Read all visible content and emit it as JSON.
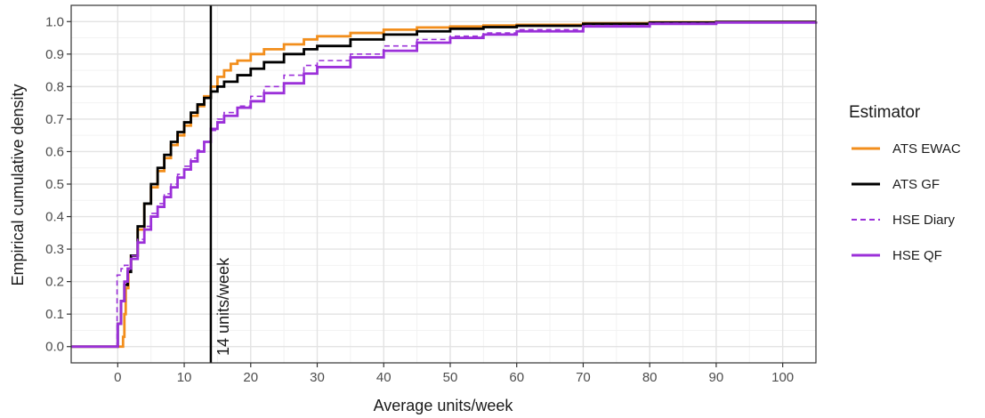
{
  "chart_data": {
    "type": "line",
    "subtype": "empirical-cdf (step)",
    "title": "",
    "xlabel": "Average units/week",
    "ylabel": "Empirical cumulative density",
    "xlim": [
      -7,
      105
    ],
    "ylim": [
      -0.05,
      1.05
    ],
    "x_ticks": [
      0,
      10,
      20,
      30,
      40,
      50,
      60,
      70,
      80,
      90,
      100
    ],
    "y_ticks": [
      0.0,
      0.1,
      0.2,
      0.3,
      0.4,
      0.5,
      0.6,
      0.7,
      0.8,
      0.9,
      1.0
    ],
    "x_tick_labels": [
      "0",
      "10",
      "20",
      "30",
      "40",
      "50",
      "60",
      "70",
      "80",
      "90",
      "100"
    ],
    "y_tick_labels": [
      "0.0",
      "0.1",
      "0.2",
      "0.3",
      "0.4",
      "0.5",
      "0.6",
      "0.7",
      "0.8",
      "0.9",
      "1.0"
    ],
    "grid": true,
    "legend": {
      "title": "Estimator",
      "position": "right"
    },
    "reference_line": {
      "x": 14,
      "label": "14 units/week"
    },
    "series": [
      {
        "name": "ATS EWAC",
        "color": "#f28e1c",
        "dash": "solid",
        "points": [
          [
            -7,
            0
          ],
          [
            0.8,
            0
          ],
          [
            0.8,
            0.03
          ],
          [
            1.0,
            0.1
          ],
          [
            1.2,
            0.18
          ],
          [
            1.6,
            0.24
          ],
          [
            2,
            0.28
          ],
          [
            3,
            0.36
          ],
          [
            4,
            0.44
          ],
          [
            5,
            0.49
          ],
          [
            6,
            0.54
          ],
          [
            7,
            0.58
          ],
          [
            8,
            0.62
          ],
          [
            9,
            0.65
          ],
          [
            10,
            0.68
          ],
          [
            11,
            0.71
          ],
          [
            12,
            0.74
          ],
          [
            13,
            0.77
          ],
          [
            14,
            0.8
          ],
          [
            15,
            0.83
          ],
          [
            16,
            0.85
          ],
          [
            17,
            0.87
          ],
          [
            18,
            0.88
          ],
          [
            20,
            0.9
          ],
          [
            22,
            0.915
          ],
          [
            25,
            0.93
          ],
          [
            28,
            0.945
          ],
          [
            30,
            0.955
          ],
          [
            35,
            0.965
          ],
          [
            40,
            0.975
          ],
          [
            45,
            0.982
          ],
          [
            50,
            0.985
          ],
          [
            55,
            0.988
          ],
          [
            60,
            0.99
          ],
          [
            70,
            0.995
          ],
          [
            80,
            0.998
          ],
          [
            90,
            0.999
          ],
          [
            105,
            1.0
          ]
        ]
      },
      {
        "name": "ATS GF",
        "color": "#000000",
        "dash": "solid",
        "points": [
          [
            -7,
            0
          ],
          [
            -0.2,
            0
          ],
          [
            0,
            0.07
          ],
          [
            0.5,
            0.14
          ],
          [
            1,
            0.19
          ],
          [
            1.5,
            0.23
          ],
          [
            2,
            0.28
          ],
          [
            3,
            0.37
          ],
          [
            4,
            0.44
          ],
          [
            5,
            0.5
          ],
          [
            6,
            0.55
          ],
          [
            7,
            0.59
          ],
          [
            8,
            0.63
          ],
          [
            9,
            0.66
          ],
          [
            10,
            0.69
          ],
          [
            11,
            0.72
          ],
          [
            12,
            0.745
          ],
          [
            13,
            0.765
          ],
          [
            14,
            0.785
          ],
          [
            15,
            0.8
          ],
          [
            16,
            0.815
          ],
          [
            18,
            0.835
          ],
          [
            20,
            0.855
          ],
          [
            22,
            0.875
          ],
          [
            25,
            0.9
          ],
          [
            28,
            0.915
          ],
          [
            30,
            0.925
          ],
          [
            35,
            0.945
          ],
          [
            40,
            0.96
          ],
          [
            45,
            0.97
          ],
          [
            50,
            0.978
          ],
          [
            55,
            0.983
          ],
          [
            60,
            0.987
          ],
          [
            70,
            0.993
          ],
          [
            80,
            0.997
          ],
          [
            90,
            0.999
          ],
          [
            105,
            1.0
          ]
        ]
      },
      {
        "name": "HSE Diary",
        "color": "#9b30d9",
        "dash": "dashed",
        "points": [
          [
            -7,
            0
          ],
          [
            -0.2,
            0
          ],
          [
            -0.1,
            0.22
          ],
          [
            0.5,
            0.24
          ],
          [
            1,
            0.25
          ],
          [
            2,
            0.28
          ],
          [
            3,
            0.33
          ],
          [
            4,
            0.37
          ],
          [
            5,
            0.41
          ],
          [
            6,
            0.44
          ],
          [
            7,
            0.47
          ],
          [
            8,
            0.5
          ],
          [
            9,
            0.53
          ],
          [
            10,
            0.555
          ],
          [
            11,
            0.58
          ],
          [
            12,
            0.605
          ],
          [
            13,
            0.63
          ],
          [
            14,
            0.665
          ],
          [
            15,
            0.7
          ],
          [
            16,
            0.72
          ],
          [
            18,
            0.74
          ],
          [
            20,
            0.77
          ],
          [
            22,
            0.8
          ],
          [
            25,
            0.835
          ],
          [
            28,
            0.865
          ],
          [
            30,
            0.88
          ],
          [
            35,
            0.9
          ],
          [
            40,
            0.925
          ],
          [
            45,
            0.945
          ],
          [
            50,
            0.955
          ],
          [
            55,
            0.965
          ],
          [
            60,
            0.975
          ],
          [
            70,
            0.988
          ],
          [
            80,
            0.995
          ],
          [
            90,
            0.998
          ],
          [
            105,
            1.0
          ]
        ]
      },
      {
        "name": "HSE QF",
        "color": "#9b30d9",
        "dash": "solid",
        "points": [
          [
            -7,
            0
          ],
          [
            -0.2,
            0
          ],
          [
            0,
            0.07
          ],
          [
            0.5,
            0.14
          ],
          [
            1,
            0.2
          ],
          [
            1.5,
            0.24
          ],
          [
            2,
            0.27
          ],
          [
            3,
            0.32
          ],
          [
            4,
            0.36
          ],
          [
            5,
            0.4
          ],
          [
            6,
            0.43
          ],
          [
            7,
            0.46
          ],
          [
            8,
            0.49
          ],
          [
            9,
            0.52
          ],
          [
            10,
            0.545
          ],
          [
            11,
            0.57
          ],
          [
            12,
            0.6
          ],
          [
            13,
            0.63
          ],
          [
            14,
            0.67
          ],
          [
            15,
            0.69
          ],
          [
            16,
            0.71
          ],
          [
            18,
            0.735
          ],
          [
            20,
            0.755
          ],
          [
            22,
            0.78
          ],
          [
            25,
            0.81
          ],
          [
            28,
            0.84
          ],
          [
            30,
            0.86
          ],
          [
            35,
            0.89
          ],
          [
            40,
            0.91
          ],
          [
            45,
            0.935
          ],
          [
            50,
            0.95
          ],
          [
            55,
            0.96
          ],
          [
            60,
            0.97
          ],
          [
            70,
            0.985
          ],
          [
            80,
            0.993
          ],
          [
            90,
            0.997
          ],
          [
            105,
            1.0
          ]
        ]
      }
    ]
  }
}
